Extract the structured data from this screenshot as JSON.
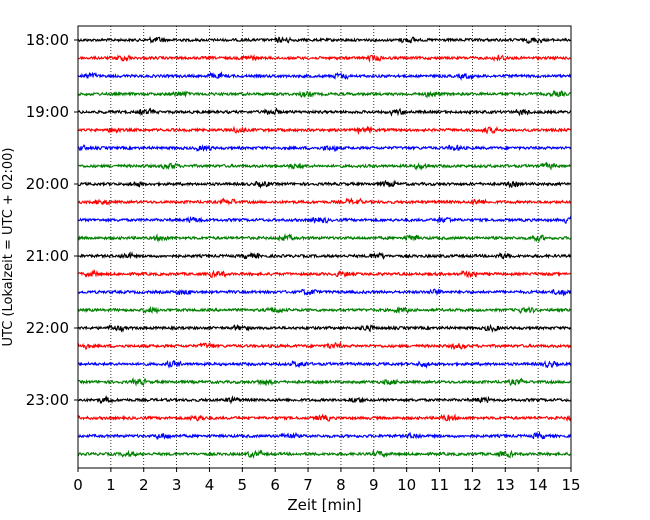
{
  "chart_data": {
    "type": "line",
    "title": "",
    "xlabel": "Zeit  [min]",
    "ylabel": "UTC (Lokalzeit = UTC + 02:00)",
    "xlim": [
      0,
      15
    ],
    "x_ticks": [
      "0",
      "1",
      "2",
      "3",
      "4",
      "5",
      "6",
      "7",
      "8",
      "9",
      "10",
      "11",
      "12",
      "13",
      "14",
      "15"
    ],
    "y_ticks": [
      "18:00",
      "19:00",
      "20:00",
      "21:00",
      "22:00",
      "23:00"
    ],
    "grid": "vertical-dotted",
    "trace_interval_minutes": 15,
    "start_time": "18:00",
    "trace_count": 24,
    "trace_colors": [
      "#000000",
      "#ff0000",
      "#0000ff",
      "#008000"
    ]
  }
}
